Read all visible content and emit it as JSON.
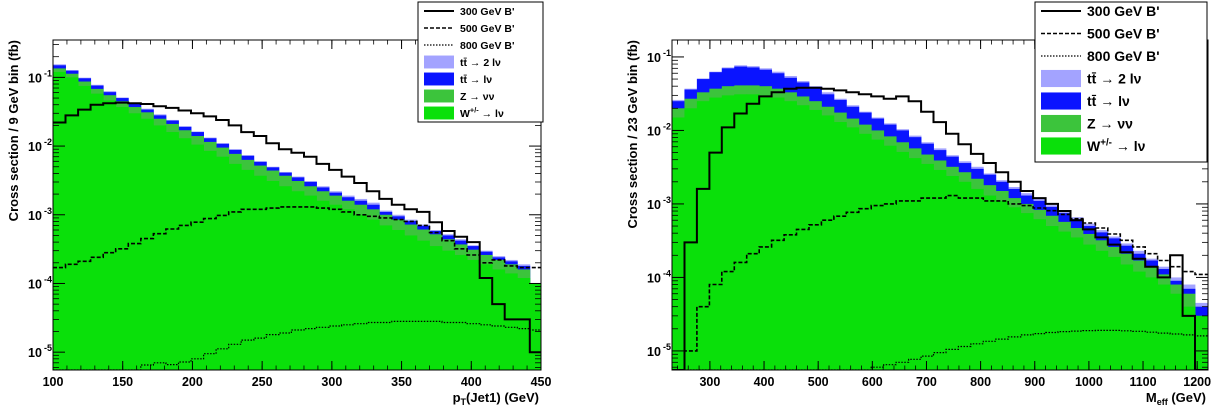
{
  "colors": {
    "ttbar_dilep": "#a3a3ff",
    "ttbar_lnu": "#0a14ff",
    "z_nunu": "#3cc43c",
    "w_lnu": "#0ae00a",
    "signal": "#000000",
    "frame": "#000000"
  },
  "chart_data": [
    {
      "type": "histogram",
      "log_y": true,
      "xlabel_main": "p",
      "xlabel_sub": "T",
      "xlabel_rest": "(Jet1) (GeV)",
      "ylabel": "Cross section / 9 GeV bin (fb)",
      "xlim": [
        100,
        450
      ],
      "ylim": [
        5.5e-06,
        0.35
      ],
      "bin_edges_start": 100,
      "bin_width": 9,
      "x_ticks": [
        "100",
        "150",
        "200",
        "250",
        "300",
        "350",
        "400",
        "450"
      ],
      "y_ticks": [
        "10",
        "10",
        "10",
        "10",
        "10"
      ],
      "y_tick_exps": [
        "-5",
        "-4",
        "-3",
        "-2",
        "-1"
      ],
      "legend_position": "top-right",
      "legend": [
        {
          "label": "300 GeV B'",
          "style": "solid"
        },
        {
          "label": "500 GeV B'",
          "style": "dashed"
        },
        {
          "label": "800 GeV B'",
          "style": "dotted"
        },
        {
          "label": "tt̄ → 2 lν",
          "style": "fill-ttbar_dilep"
        },
        {
          "label": "tt̄ → lν",
          "style": "fill-ttbar_lnu"
        },
        {
          "label": "Z → νν",
          "style": "fill-z_nunu"
        },
        {
          "label": "W+/- → lν",
          "label_main": "W",
          "label_sup": "+/-",
          "label_rest": " → lν",
          "style": "fill-w_lnu"
        }
      ],
      "stack": {
        "w_lnu": [
          0.12,
          0.1,
          0.075,
          0.058,
          0.046,
          0.037,
          0.03,
          0.025,
          0.02,
          0.016,
          0.013,
          0.0105,
          0.0085,
          0.007,
          0.0055,
          0.0045,
          0.0037,
          0.0031,
          0.0026,
          0.0022,
          0.0019,
          0.0016,
          0.0014,
          0.0012,
          0.001,
          0.00085,
          0.0007,
          0.0006,
          0.0005,
          0.00042,
          0.00035,
          0.0003,
          0.00026,
          0.00022,
          0.00019,
          0.00016,
          0.00014,
          0.00012,
          0.0001
        ],
        "z_nunu": [
          0.135,
          0.113,
          0.087,
          0.068,
          0.055,
          0.045,
          0.037,
          0.031,
          0.025,
          0.021,
          0.017,
          0.014,
          0.0115,
          0.0095,
          0.0077,
          0.0063,
          0.0052,
          0.0044,
          0.0037,
          0.0031,
          0.0026,
          0.0022,
          0.0019,
          0.0016,
          0.0014,
          0.0012,
          0.001,
          0.00085,
          0.00072,
          0.00061,
          0.00052,
          0.00044,
          0.00037,
          0.00031,
          0.00026,
          0.00022,
          0.00019,
          0.00016,
          4.5e-05
        ],
        "ttbar_lnu": [
          0.15,
          0.125,
          0.097,
          0.076,
          0.061,
          0.05,
          0.041,
          0.034,
          0.028,
          0.0235,
          0.019,
          0.016,
          0.013,
          0.0108,
          0.0088,
          0.0072,
          0.0059,
          0.0049,
          0.0041,
          0.0035,
          0.003,
          0.0025,
          0.0021,
          0.0018,
          0.0016,
          0.0014,
          0.0011,
          0.00095,
          0.00081,
          0.00069,
          0.00058,
          0.0005,
          0.00042,
          0.00035,
          0.00029,
          0.00024,
          0.00021,
          0.00018,
          5e-05
        ],
        "ttbar_dilep": [
          0.155,
          0.128,
          0.099,
          0.078,
          0.063,
          0.051,
          0.042,
          0.035,
          0.029,
          0.024,
          0.0195,
          0.0163,
          0.0133,
          0.011,
          0.009,
          0.0074,
          0.006,
          0.005,
          0.0042,
          0.0036,
          0.0031,
          0.0026,
          0.0022,
          0.0019,
          0.0017,
          0.0015,
          0.00115,
          0.001,
          0.00085,
          0.00072,
          0.0006,
          0.00052,
          0.00044,
          0.00036,
          0.0003,
          0.00025,
          0.00022,
          0.00019,
          5e-05
        ]
      },
      "signals": [
        {
          "name": "300 GeV B'",
          "style": "solid",
          "values": [
            0.022,
            0.028,
            0.034,
            0.04,
            0.042,
            0.043,
            0.042,
            0.041,
            0.038,
            0.036,
            0.033,
            0.03,
            0.027,
            0.024,
            0.02,
            0.016,
            0.014,
            0.011,
            0.009,
            0.008,
            0.007,
            0.0055,
            0.0045,
            0.0036,
            0.0029,
            0.0022,
            0.0017,
            0.0014,
            0.0012,
            0.0011,
            0.00078,
            0.00058,
            0.00048,
            0.0004,
            0.00012,
            5e-05,
            3e-05,
            3e-05,
            1e-05
          ]
        },
        {
          "name": "500 GeV B'",
          "style": "dashed",
          "values": [
            0.00017,
            0.00019,
            0.00021,
            0.00024,
            0.00028,
            0.00032,
            0.00038,
            0.00045,
            0.00053,
            0.00062,
            0.0007,
            0.00078,
            0.00088,
            0.00098,
            0.0011,
            0.0012,
            0.0012,
            0.00125,
            0.0013,
            0.0013,
            0.0013,
            0.00125,
            0.0012,
            0.0011,
            0.001,
            0.00095,
            0.0009,
            0.00085,
            0.0008,
            0.0007,
            0.00055,
            0.00042,
            0.00032,
            0.00026,
            0.0002,
            0.00022,
            0.00018,
            0.00017,
            0.00017
          ]
        },
        {
          "name": "800 GeV B'",
          "style": "dotted",
          "values": [
            3e-06,
            3e-06,
            3e-06,
            3e-06,
            3e-06,
            3e-06,
            3e-06,
            6.5e-06,
            7e-06,
            6.6e-06,
            7.2e-06,
            8e-06,
            9.5e-06,
            1.12e-05,
            1.3e-05,
            1.5e-05,
            1.6e-05,
            1.8e-05,
            1.9e-05,
            2.1e-05,
            2.2e-05,
            2.3e-05,
            2.4e-05,
            2.5e-05,
            2.6e-05,
            2.7e-05,
            2.7e-05,
            2.8e-05,
            2.8e-05,
            2.8e-05,
            2.8e-05,
            2.7e-05,
            2.7e-05,
            2.6e-05,
            2.5e-05,
            2.4e-05,
            2.3e-05,
            2.2e-05,
            2.1e-05
          ]
        }
      ]
    },
    {
      "type": "histogram",
      "log_y": true,
      "xlabel_main": "M",
      "xlabel_sub": "eff",
      "xlabel_rest": " (GeV)",
      "ylabel": "Cross section / 23 GeV bin (fb)",
      "xlim": [
        230,
        1220
      ],
      "ylim": [
        5.5e-06,
        0.17
      ],
      "bin_edges_start": 230,
      "bin_width": 23,
      "x_ticks": [
        "300",
        "400",
        "500",
        "600",
        "700",
        "800",
        "900",
        "1000",
        "1100",
        "1200"
      ],
      "y_ticks": [
        "10",
        "10",
        "10",
        "10",
        "10"
      ],
      "y_tick_exps": [
        "-5",
        "-4",
        "-3",
        "-2",
        "-1"
      ],
      "legend_position": "top-right",
      "legend": [
        {
          "label": "300 GeV B'",
          "style": "solid"
        },
        {
          "label": "500 GeV B'",
          "style": "dashed"
        },
        {
          "label": "800 GeV B'",
          "style": "dotted"
        },
        {
          "label": "tt̄ → 2 lν",
          "style": "fill-ttbar_dilep"
        },
        {
          "label": "tt̄ → lν",
          "style": "fill-ttbar_lnu"
        },
        {
          "label": "Z → νν",
          "style": "fill-z_nunu"
        },
        {
          "label": "W+/- → lν",
          "label_main": "W",
          "label_sup": "+/-",
          "label_rest": " → lν",
          "style": "fill-w_lnu"
        }
      ],
      "stack": {
        "w_lnu": [
          0.015,
          0.02,
          0.025,
          0.028,
          0.03,
          0.031,
          0.031,
          0.03,
          0.028,
          0.025,
          0.022,
          0.019,
          0.016,
          0.013,
          0.011,
          0.009,
          0.0075,
          0.0062,
          0.0051,
          0.0042,
          0.0035,
          0.0029,
          0.0024,
          0.002,
          0.0016,
          0.0013,
          0.0011,
          0.0009,
          0.00075,
          0.00062,
          0.0005,
          0.00042,
          0.00035,
          0.00028,
          0.00023,
          0.00019,
          0.00015,
          0.00012,
          0.0001,
          8e-05,
          6e-05,
          4e-05,
          3e-05
        ],
        "z_nunu": [
          0.02,
          0.027,
          0.033,
          0.037,
          0.04,
          0.041,
          0.041,
          0.04,
          0.037,
          0.033,
          0.029,
          0.025,
          0.021,
          0.0175,
          0.0145,
          0.012,
          0.01,
          0.0083,
          0.0069,
          0.0057,
          0.0047,
          0.0039,
          0.0032,
          0.0027,
          0.0022,
          0.0018,
          0.0015,
          0.0012,
          0.001,
          0.00083,
          0.00069,
          0.00057,
          0.00047,
          0.00039,
          0.00032,
          0.00026,
          0.00021,
          0.00017,
          0.00014,
          0.00011,
          8e-05,
          6e-05,
          3e-05
        ],
        "ttbar_lnu": [
          0.025,
          0.036,
          0.05,
          0.062,
          0.07,
          0.074,
          0.072,
          0.067,
          0.06,
          0.052,
          0.045,
          0.038,
          0.031,
          0.026,
          0.021,
          0.0175,
          0.0145,
          0.012,
          0.01,
          0.0081,
          0.0066,
          0.0054,
          0.0044,
          0.0036,
          0.003,
          0.0025,
          0.002,
          0.0016,
          0.0013,
          0.0011,
          0.00091,
          0.00075,
          0.00062,
          0.0005,
          0.00041,
          0.00034,
          0.00027,
          0.00021,
          0.00017,
          0.00013,
          9e-05,
          7e-05,
          4e-05
        ],
        "ttbar_dilep": [
          0.026,
          0.037,
          0.051,
          0.063,
          0.072,
          0.077,
          0.075,
          0.07,
          0.063,
          0.055,
          0.047,
          0.04,
          0.033,
          0.027,
          0.022,
          0.018,
          0.015,
          0.0125,
          0.0104,
          0.0085,
          0.0069,
          0.0057,
          0.0046,
          0.0038,
          0.0032,
          0.0026,
          0.0021,
          0.0017,
          0.0014,
          0.0012,
          0.00096,
          0.0008,
          0.00066,
          0.00054,
          0.00044,
          0.00036,
          0.00029,
          0.00023,
          0.00018,
          0.00014,
          0.0001,
          8e-05,
          4.5e-05
        ]
      },
      "signals": [
        {
          "name": "300 GeV B'",
          "style": "solid",
          "values": [
            1e-06,
            0.0003,
            0.0016,
            0.005,
            0.011,
            0.017,
            0.023,
            0.029,
            0.033,
            0.037,
            0.038,
            0.038,
            0.037,
            0.035,
            0.033,
            0.031,
            0.029,
            0.027,
            0.029,
            0.025,
            0.018,
            0.013,
            0.009,
            0.0065,
            0.0048,
            0.0036,
            0.0027,
            0.002,
            0.0015,
            0.0012,
            0.001,
            0.0008,
            0.0006,
            0.00045,
            0.00035,
            0.00028,
            0.00022,
            0.00018,
            0.00014,
            0.0001,
            0.0002,
            3e-05,
            1e-06
          ]
        },
        {
          "name": "500 GeV B'",
          "style": "dashed",
          "values": [
            1e-06,
            1e-05,
            4e-05,
            8e-05,
            0.00012,
            0.00016,
            0.00021,
            0.00026,
            0.00032,
            0.00038,
            0.00045,
            0.00052,
            0.0006,
            0.00068,
            0.00077,
            0.00086,
            0.00095,
            0.001,
            0.0011,
            0.0011,
            0.0012,
            0.0012,
            0.0013,
            0.0012,
            0.0012,
            0.0011,
            0.0011,
            0.001,
            0.00095,
            0.00088,
            0.00081,
            0.00072,
            0.00063,
            0.00055,
            0.00047,
            0.00039,
            0.00032,
            0.00026,
            0.00021,
            0.00017,
            0.00014,
            0.00012,
            0.00011
          ]
        },
        {
          "name": "800 GeV B'",
          "style": "dotted",
          "values": [
            1e-06,
            1e-06,
            1e-06,
            1e-06,
            1e-06,
            1e-06,
            1e-06,
            1e-06,
            1e-06,
            1e-06,
            1e-06,
            1e-06,
            1e-06,
            1e-06,
            1e-06,
            5.5e-06,
            6e-06,
            6.5e-06,
            7e-06,
            7.7e-06,
            8.5e-06,
            9.5e-06,
            1.05e-05,
            1.15e-05,
            1.25e-05,
            1.35e-05,
            1.45e-05,
            1.55e-05,
            1.65e-05,
            1.72e-05,
            1.78e-05,
            1.83e-05,
            1.86e-05,
            1.89e-05,
            1.9e-05,
            1.9e-05,
            1.88e-05,
            1.85e-05,
            1.8e-05,
            1.75e-05,
            1.7e-05,
            1.65e-05,
            1.6e-05
          ]
        }
      ]
    }
  ]
}
